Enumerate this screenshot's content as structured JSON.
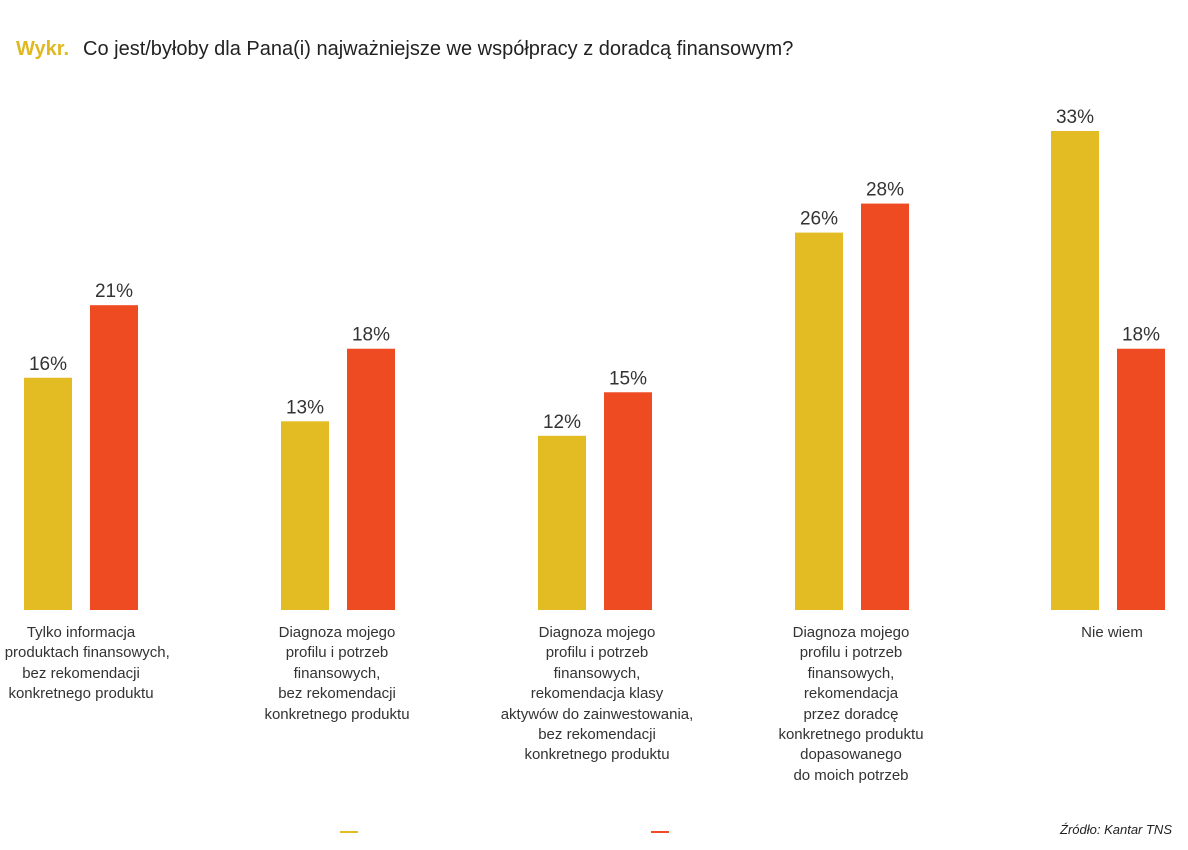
{
  "title": {
    "tag": "Wykr.",
    "question": "Co jest/byłoby dla Pana(i) najważniejsze we współpracy z doradcą finansowym?"
  },
  "source": "Źródło: Kantar TNS",
  "colors": {
    "series_a": "#e3bb22",
    "series_b": "#ef4b22",
    "tag": "#e0b820"
  },
  "chart_data": {
    "type": "bar",
    "title": "Co jest/byłoby dla Pana(i) najważniejsze we współpracy z doradcą finansowym?",
    "categories": [
      "Tylko informacja\no produktach finansowych,\nbez rekomendacji\nkonkretnego produktu",
      "Diagnoza mojego\nprofilu i potrzeb\nfinansowych,\nbez rekomendacji\nkonkretnego produktu",
      "Diagnoza mojego\nprofilu i potrzeb\nfinansowych,\nrekomendacja klasy\naktywów do zainwestowania,\nbez rekomendacji\nkonkretnego produktu",
      "Diagnoza mojego\nprofilu i potrzeb\nfinansowych,\nrekomendacja\nprzez doradcę\nkonkretnego produktu\ndopasowanego\ndo moich potrzeb",
      "Nie wiem"
    ],
    "series": [
      {
        "values": [
          16,
          13,
          12,
          26,
          33
        ],
        "color": "#e3bb22"
      },
      {
        "values": [
          21,
          18,
          15,
          28,
          18
        ],
        "color": "#ef4b22"
      }
    ],
    "value_suffix": "%",
    "ylim": [
      0,
      33
    ],
    "grid": false,
    "legend": "bottom"
  }
}
